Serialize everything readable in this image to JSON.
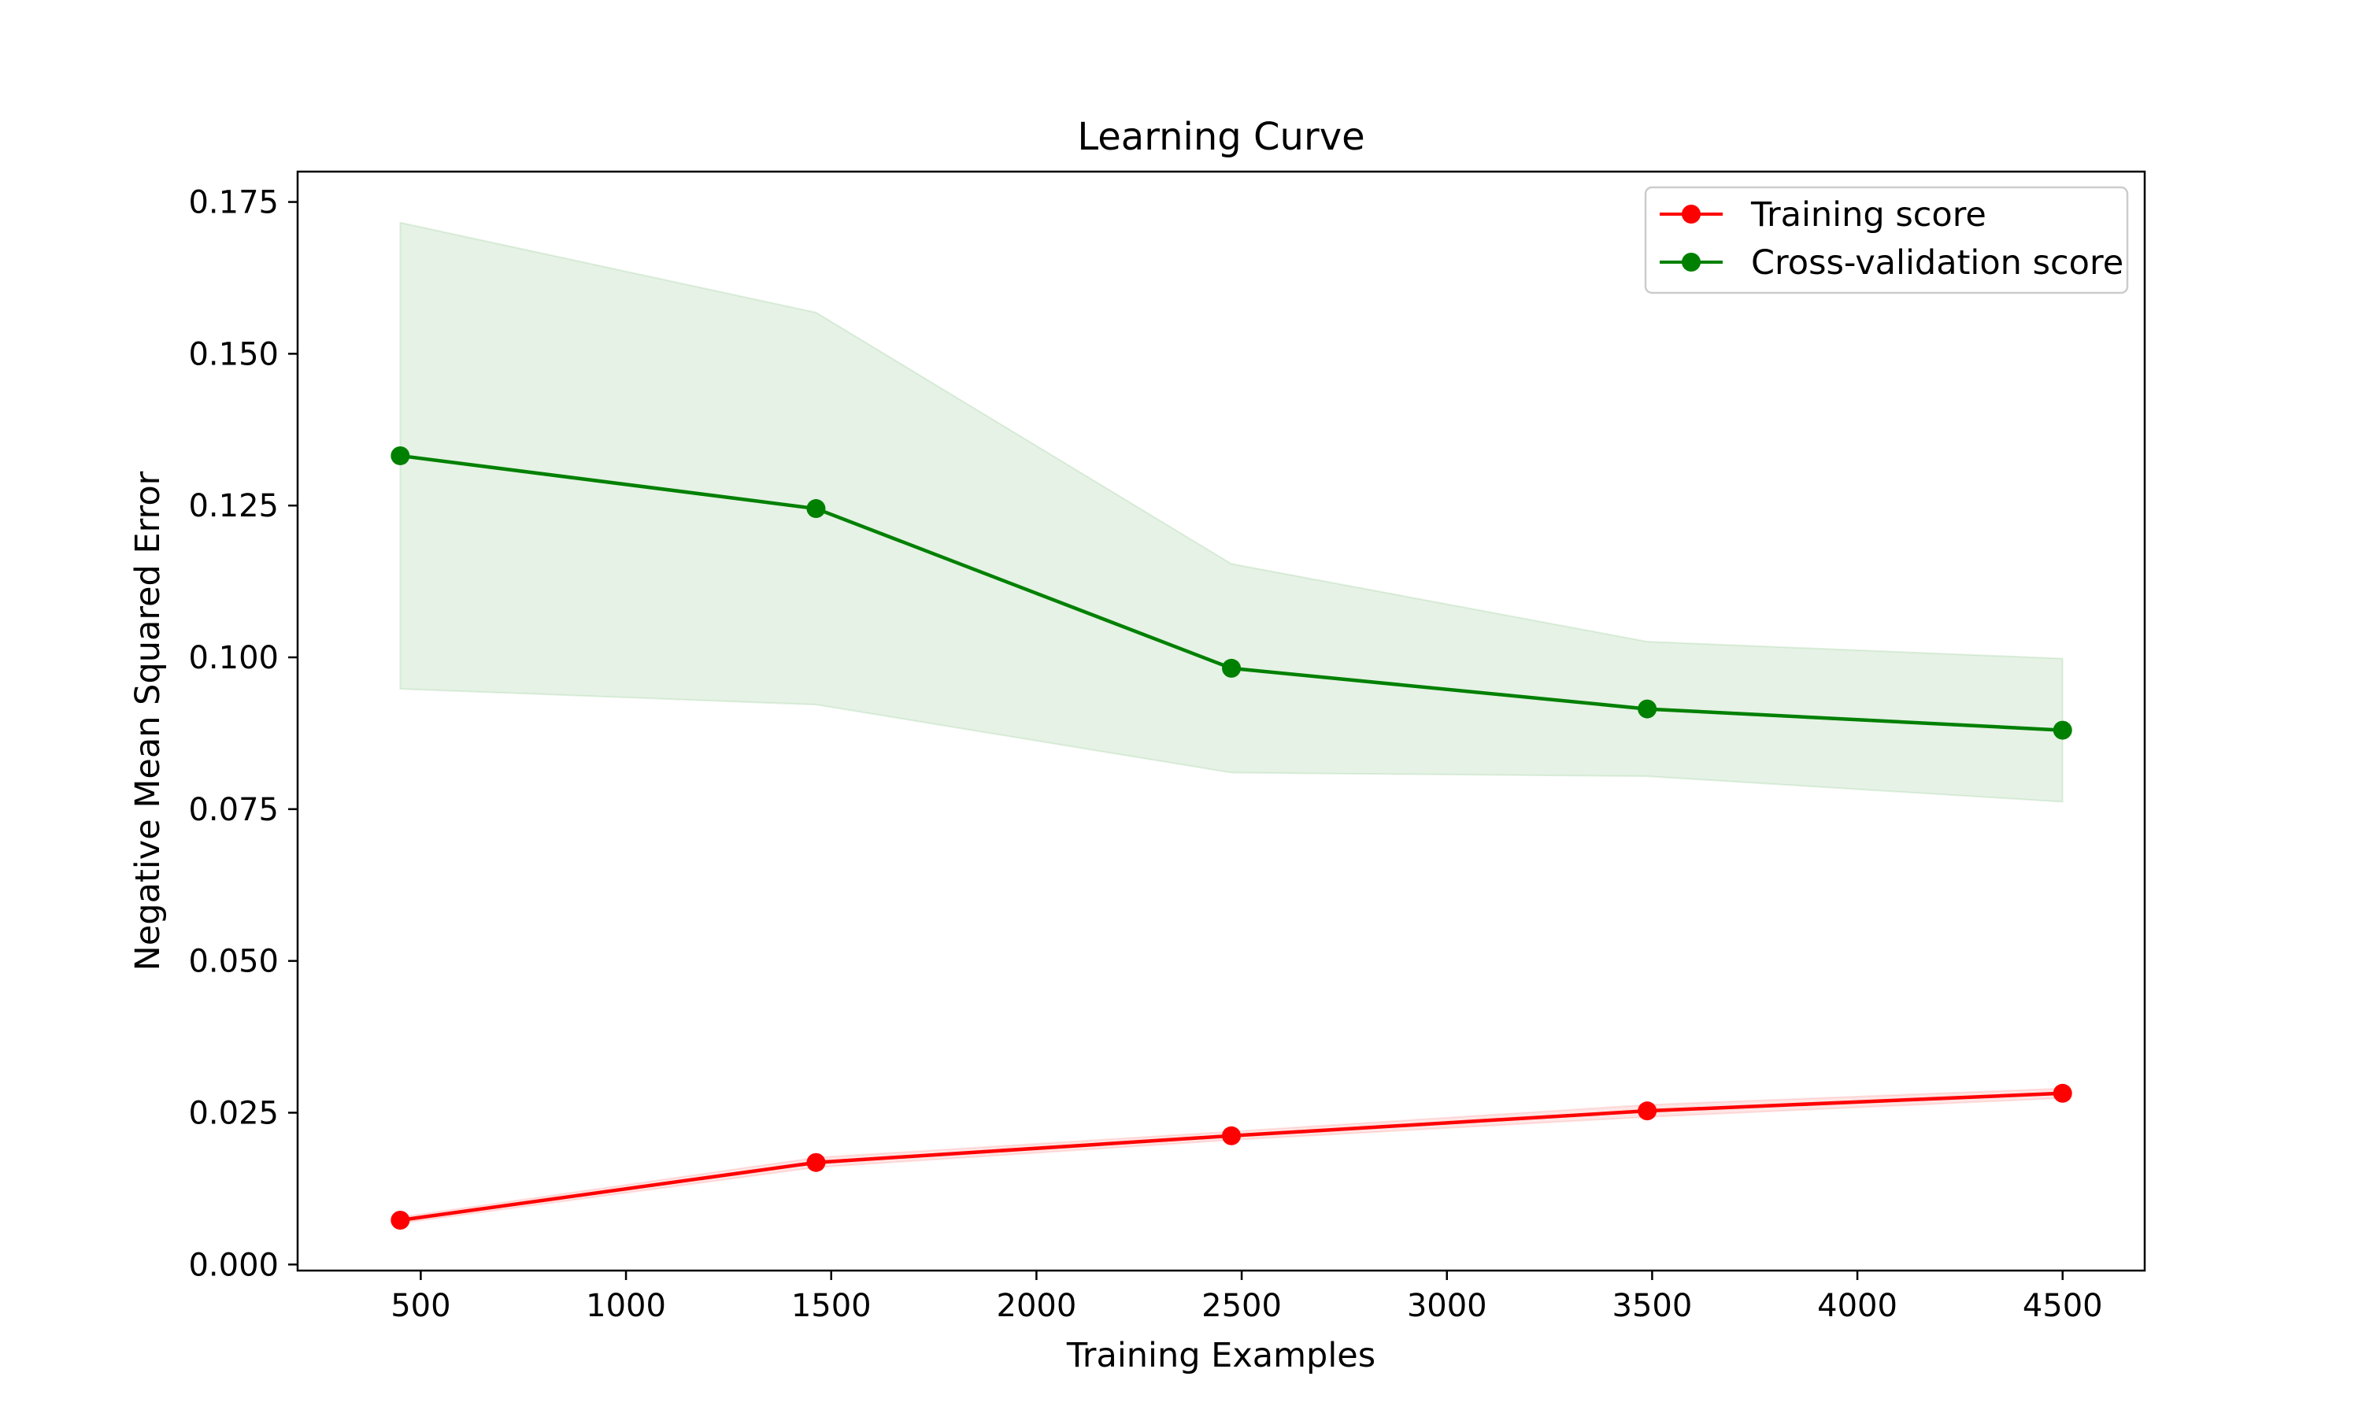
{
  "chart_data": {
    "type": "line",
    "title": "Learning Curve",
    "xlabel": "Training Examples",
    "ylabel": "Negative Mean Squared Error",
    "xlim": [
      200,
      4700
    ],
    "ylim": [
      -0.001,
      0.18
    ],
    "xticks": [
      500,
      1000,
      1500,
      2000,
      2500,
      3000,
      3500,
      4000,
      4500
    ],
    "xtick_labels": [
      "500",
      "1000",
      "1500",
      "2000",
      "2500",
      "3000",
      "3500",
      "4000",
      "4500"
    ],
    "yticks": [
      0.0,
      0.025,
      0.05,
      0.075,
      0.1,
      0.125,
      0.15,
      0.175
    ],
    "ytick_labels": [
      "0.000",
      "0.025",
      "0.050",
      "0.075",
      "0.100",
      "0.125",
      "0.150",
      "0.175"
    ],
    "grid": false,
    "legend_position": "top-right",
    "x": [
      450,
      1463,
      2475,
      3488,
      4500
    ],
    "series": [
      {
        "name": "Training score",
        "color": "#ff0000",
        "values": [
          0.0073,
          0.0168,
          0.0212,
          0.0253,
          0.0282
        ],
        "band_lower": [
          0.0068,
          0.016,
          0.0205,
          0.0243,
          0.0274
        ],
        "band_upper": [
          0.0078,
          0.0176,
          0.0219,
          0.0263,
          0.029
        ]
      },
      {
        "name": "Cross-validation score",
        "color": "#008000",
        "values": [
          0.1332,
          0.1245,
          0.0982,
          0.0915,
          0.088
        ],
        "band_lower": [
          0.0948,
          0.0922,
          0.081,
          0.0804,
          0.0762
        ],
        "band_upper": [
          0.1716,
          0.1568,
          0.1154,
          0.1026,
          0.0998
        ]
      }
    ]
  }
}
